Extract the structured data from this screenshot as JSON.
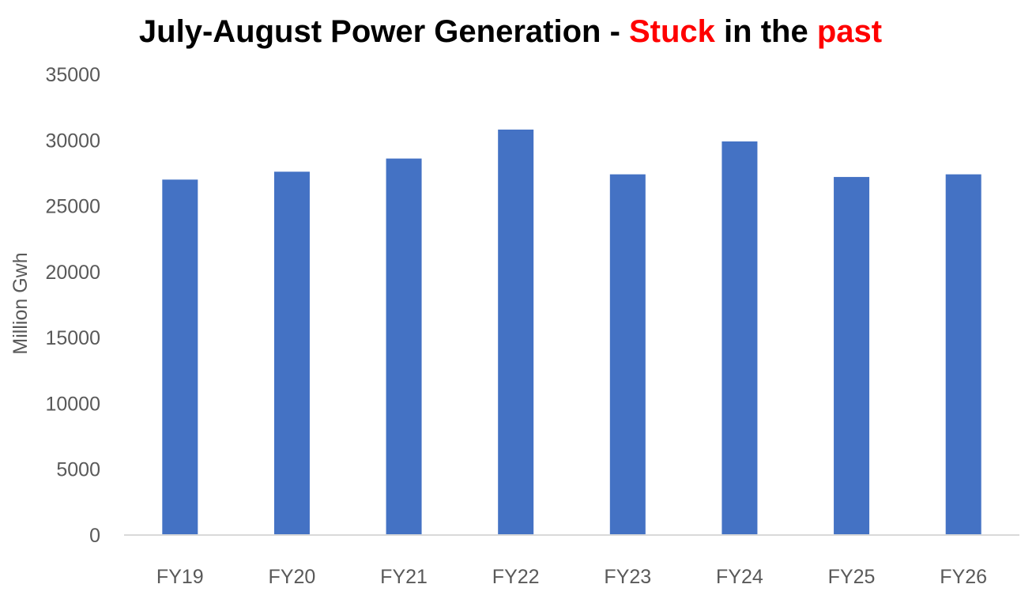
{
  "title": {
    "part1": "July-August Power Generation - ",
    "part2": "Stuck",
    "part3": " in the ",
    "part4": "past"
  },
  "colors": {
    "bar": "#4472c4",
    "title_accent": "#ff0000",
    "axis_text": "#595959",
    "axis_line": "#d9d9d9"
  },
  "chart_data": {
    "type": "bar",
    "title": "July-August Power Generation - Stuck in the past",
    "xlabel": "",
    "ylabel": "Million Gwh",
    "categories": [
      "FY19",
      "FY20",
      "FY21",
      "FY22",
      "FY23",
      "FY24",
      "FY25",
      "FY26"
    ],
    "values": [
      27000,
      27600,
      28600,
      30800,
      27400,
      29900,
      27200,
      27400
    ],
    "ylim": [
      0,
      35000
    ],
    "yticks": [
      "0",
      "5000",
      "10000",
      "15000",
      "20000",
      "25000",
      "30000",
      "35000"
    ],
    "grid": false,
    "legend": "none"
  }
}
